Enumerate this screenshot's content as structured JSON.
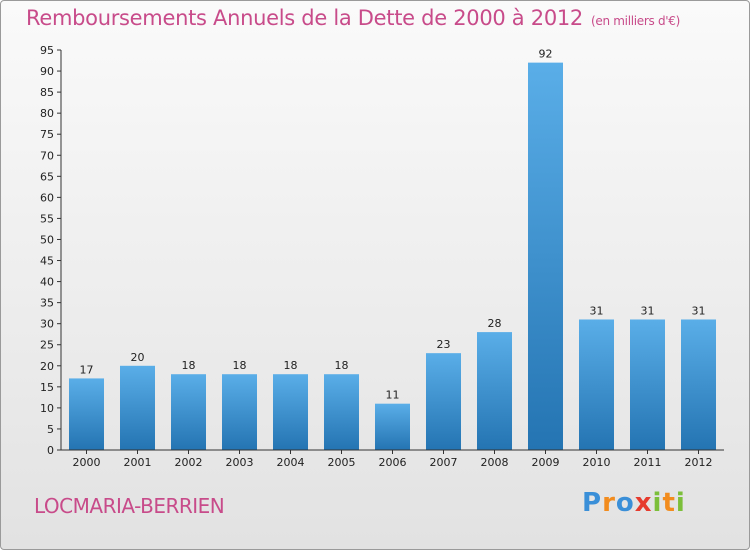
{
  "header": {
    "title": "Remboursements Annuels de la Dette de 2000 à 2012",
    "unit": "(en milliers d'€)"
  },
  "footer": {
    "commune": "LOCMARIA-BERRIEN",
    "logo_letters": [
      "P",
      "r",
      "o",
      "x",
      "i",
      "t",
      "i"
    ]
  },
  "colors": {
    "title": "#c84b8a",
    "bar_light": "#5aaee8",
    "bar_dark": "#2474b2",
    "axis": "#333333"
  },
  "chart_data": {
    "type": "bar",
    "title": "Remboursements Annuels de la Dette de 2000 à 2012",
    "xlabel": "",
    "ylabel": "",
    "categories": [
      "2000",
      "2001",
      "2002",
      "2003",
      "2004",
      "2005",
      "2006",
      "2007",
      "2008",
      "2009",
      "2010",
      "2011",
      "2012"
    ],
    "values": [
      17,
      20,
      18,
      18,
      18,
      18,
      11,
      23,
      28,
      92,
      31,
      31,
      31
    ],
    "ylim": [
      0,
      95
    ],
    "yticks": [
      0,
      5,
      10,
      15,
      20,
      25,
      30,
      35,
      40,
      45,
      50,
      55,
      60,
      65,
      70,
      75,
      80,
      85,
      90,
      95
    ],
    "grid": false,
    "legend": "none"
  }
}
